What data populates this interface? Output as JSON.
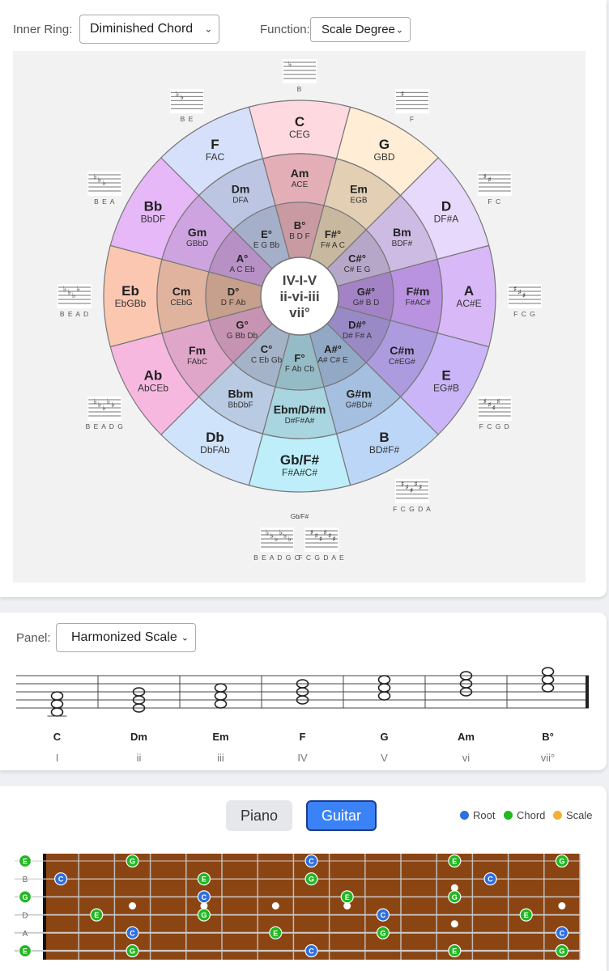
{
  "controls": {
    "inner_ring_label": "Inner Ring:",
    "inner_ring_value": "Diminished Chord",
    "function_label": "Function:",
    "function_value": "Scale Degree",
    "panel_label": "Panel:",
    "panel_value": "Harmonized Scale"
  },
  "wheel": {
    "center_lines": [
      "IV-I-V",
      "ii-vi-iii",
      "vii°"
    ],
    "outer": [
      {
        "name": "C",
        "notes": "CEG",
        "color": "#ffd9e0"
      },
      {
        "name": "G",
        "notes": "GBD",
        "color": "#ffedd5"
      },
      {
        "name": "D",
        "notes": "DF#A",
        "color": "#e6d9fb"
      },
      {
        "name": "A",
        "notes": "AC#E",
        "color": "#d8b8f7"
      },
      {
        "name": "E",
        "notes": "EG#B",
        "color": "#c9b5f7"
      },
      {
        "name": "B",
        "notes": "BD#F#",
        "color": "#bcd6f7"
      },
      {
        "name": "Gb/F#",
        "notes": "F#A#C#",
        "color": "#bdeefa"
      },
      {
        "name": "Db",
        "notes": "DbFAb",
        "color": "#cfe3fb"
      },
      {
        "name": "Ab",
        "notes": "AbCEb",
        "color": "#f7b8e0"
      },
      {
        "name": "Eb",
        "notes": "EbGBb",
        "color": "#fbc7b0"
      },
      {
        "name": "Bb",
        "notes": "BbDF",
        "color": "#e6b8f7"
      },
      {
        "name": "F",
        "notes": "FAC",
        "color": "#d6e0fb"
      }
    ],
    "middle": [
      {
        "name": "Am",
        "notes": "ACE",
        "color": "#e3aeb6"
      },
      {
        "name": "Em",
        "notes": "EGB",
        "color": "#e3cfb4"
      },
      {
        "name": "Bm",
        "notes": "BDF#",
        "color": "#cebbe3"
      },
      {
        "name": "F#m",
        "notes": "F#AC#",
        "color": "#b993e0"
      },
      {
        "name": "C#m",
        "notes": "C#EG#",
        "color": "#ad9be0"
      },
      {
        "name": "G#m",
        "notes": "G#BD#",
        "color": "#a5bfe0"
      },
      {
        "name": "Ebm/D#m",
        "notes": "D#F#A#",
        "color": "#a8d5e0"
      },
      {
        "name": "Bbm",
        "notes": "BbDbF",
        "color": "#b9cae3"
      },
      {
        "name": "Fm",
        "notes": "FAbC",
        "color": "#e0a6c9"
      },
      {
        "name": "Cm",
        "notes": "CEbG",
        "color": "#e0b39f"
      },
      {
        "name": "Gm",
        "notes": "GBbD",
        "color": "#cea4e0"
      },
      {
        "name": "Dm",
        "notes": "DFA",
        "color": "#bcc6e3"
      }
    ],
    "inner": [
      {
        "name": "B°",
        "notes": "B D F",
        "color": "#c99aa1"
      },
      {
        "name": "F#°",
        "notes": "F# A C",
        "color": "#c9b8a0"
      },
      {
        "name": "C#°",
        "notes": "C# E G",
        "color": "#b6a7c9"
      },
      {
        "name": "G#°",
        "notes": "G# B D",
        "color": "#a383c6"
      },
      {
        "name": "D#°",
        "notes": "D# F# A",
        "color": "#998ac6"
      },
      {
        "name": "A#°",
        "notes": "A# C# E",
        "color": "#92a9c6"
      },
      {
        "name": "F°",
        "notes": "F Ab Cb",
        "color": "#95bcc6"
      },
      {
        "name": "C°",
        "notes": "C Eb Gb",
        "color": "#a5b3c9"
      },
      {
        "name": "G°",
        "notes": "G Bb Db",
        "color": "#c693b2"
      },
      {
        "name": "D°",
        "notes": "D F Ab",
        "color": "#c69f8d"
      },
      {
        "name": "A°",
        "notes": "A C Eb",
        "color": "#b791c6"
      },
      {
        "name": "E°",
        "notes": "E G Bb",
        "color": "#a6afc9"
      }
    ],
    "key_signatures": [
      {
        "label": "F"
      },
      {
        "label": "F C"
      },
      {
        "label": "F C G"
      },
      {
        "label": "F C G D"
      },
      {
        "label": "F C G D A"
      },
      {
        "label": "F C G D A E"
      },
      {
        "label": "B E A D G C"
      },
      {
        "label": "B E A D G"
      },
      {
        "label": "B E A D"
      },
      {
        "label": "B E A"
      },
      {
        "label": "B E"
      },
      {
        "label": "B"
      }
    ],
    "gb_label": "Gb/F#",
    "bottom_labels": [
      "BEADGC",
      "FCGDAE"
    ]
  },
  "harmonized": {
    "chords": [
      {
        "name": "C",
        "degree": "I"
      },
      {
        "name": "Dm",
        "degree": "ii"
      },
      {
        "name": "Em",
        "degree": "iii"
      },
      {
        "name": "F",
        "degree": "IV"
      },
      {
        "name": "G",
        "degree": "V"
      },
      {
        "name": "Am",
        "degree": "vi"
      },
      {
        "name": "B°",
        "degree": "vii°"
      }
    ]
  },
  "instrument": {
    "piano_label": "Piano",
    "guitar_label": "Guitar",
    "legend": [
      {
        "label": "Root",
        "color": "#2f6fde"
      },
      {
        "label": "Chord",
        "color": "#22b822"
      },
      {
        "label": "Scale",
        "color": "#f2b134"
      }
    ],
    "strings": [
      "E",
      "B",
      "G",
      "D",
      "A",
      "E"
    ],
    "open_notes": [
      {
        "string": 0,
        "note": "E",
        "type": "chord"
      },
      {
        "string": 1,
        "note": "B",
        "type": "none"
      },
      {
        "string": 2,
        "note": "G",
        "type": "chord"
      },
      {
        "string": 3,
        "note": "D",
        "type": "none"
      },
      {
        "string": 4,
        "note": "A",
        "type": "none"
      },
      {
        "string": 5,
        "note": "E",
        "type": "chord"
      }
    ],
    "fret_markers": [
      3,
      5,
      7,
      9,
      15,
      17
    ],
    "double_marker": 12,
    "fret_count": 15,
    "fretted": [
      {
        "string": 1,
        "fret": 1,
        "note": "C",
        "type": "root"
      },
      {
        "string": 3,
        "fret": 2,
        "note": "E",
        "type": "chord"
      },
      {
        "string": 0,
        "fret": 3,
        "note": "G",
        "type": "chord"
      },
      {
        "string": 4,
        "fret": 3,
        "note": "C",
        "type": "root"
      },
      {
        "string": 5,
        "fret": 3,
        "note": "G",
        "type": "chord"
      },
      {
        "string": 1,
        "fret": 5,
        "note": "E",
        "type": "chord"
      },
      {
        "string": 2,
        "fret": 5,
        "note": "C",
        "type": "root"
      },
      {
        "string": 3,
        "fret": 5,
        "note": "G",
        "type": "chord"
      },
      {
        "string": 4,
        "fret": 7,
        "note": "E",
        "type": "chord"
      },
      {
        "string": 0,
        "fret": 8,
        "note": "C",
        "type": "root"
      },
      {
        "string": 1,
        "fret": 8,
        "note": "G",
        "type": "chord"
      },
      {
        "string": 5,
        "fret": 8,
        "note": "C",
        "type": "root"
      },
      {
        "string": 2,
        "fret": 9,
        "note": "E",
        "type": "chord"
      },
      {
        "string": 3,
        "fret": 10,
        "note": "C",
        "type": "root"
      },
      {
        "string": 4,
        "fret": 10,
        "note": "G",
        "type": "chord"
      },
      {
        "string": 0,
        "fret": 12,
        "note": "E",
        "type": "chord"
      },
      {
        "string": 2,
        "fret": 12,
        "note": "G",
        "type": "chord"
      },
      {
        "string": 5,
        "fret": 12,
        "note": "E",
        "type": "chord"
      },
      {
        "string": 1,
        "fret": 13,
        "note": "C",
        "type": "root"
      },
      {
        "string": 3,
        "fret": 14,
        "note": "E",
        "type": "chord"
      },
      {
        "string": 0,
        "fret": 15,
        "note": "G",
        "type": "chord"
      },
      {
        "string": 4,
        "fret": 15,
        "note": "C",
        "type": "root"
      },
      {
        "string": 5,
        "fret": 15,
        "note": "G",
        "type": "chord"
      }
    ]
  }
}
